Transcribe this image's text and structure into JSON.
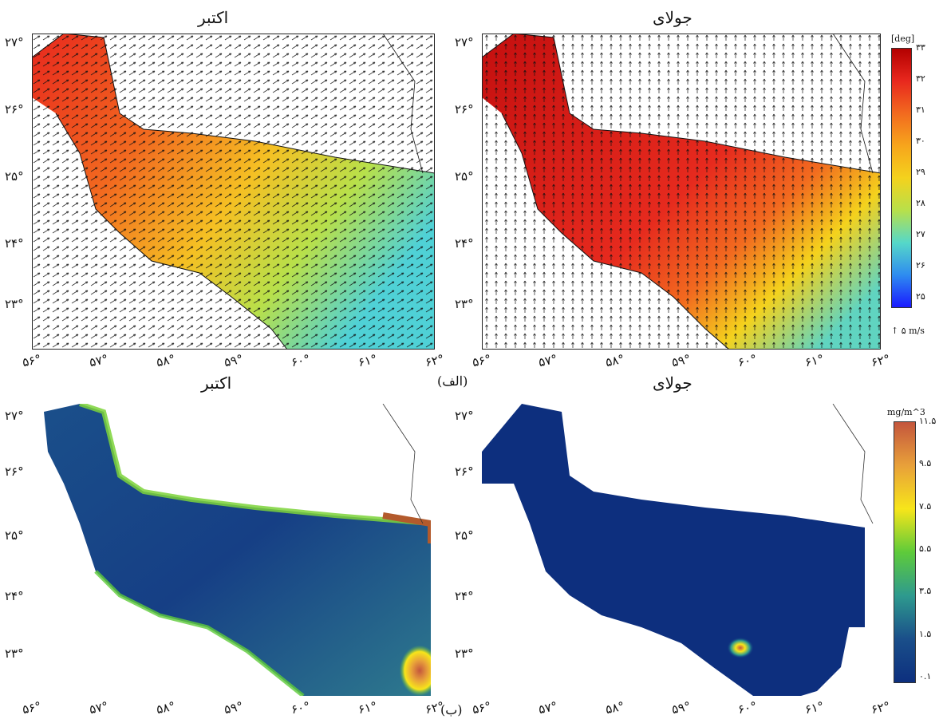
{
  "panel_group_labels": {
    "top": "(الف)",
    "bottom": "(ب)"
  },
  "panels": {
    "top_left": {
      "title": "اکتبر",
      "variable": "sst_with_wind_vectors"
    },
    "top_right": {
      "title": "جولای",
      "variable": "sst_with_wind_vectors"
    },
    "bottom_left": {
      "title": "اکتبر",
      "variable": "chlorophyll"
    },
    "bottom_right": {
      "title": "جولای",
      "variable": "chlorophyll"
    }
  },
  "lon_ticks": [
    "۵۶°",
    "۵۷°",
    "۵۸°",
    "۵۹°",
    "۶۰°",
    "۶۱°",
    "۶۲°"
  ],
  "lat_ticks": [
    "۲۷°",
    "۲۶°",
    "۲۵°",
    "۲۴°",
    "۲۳°"
  ],
  "sst_colorbar": {
    "unit": "[deg]",
    "ticks": [
      "۳۳",
      "۳۲",
      "۳۱",
      "۳۰",
      "۲۹",
      "۲۸",
      "۲۷",
      "۲۶",
      "۲۵"
    ],
    "colors": [
      "#b30000",
      "#e8281e",
      "#f26a1f",
      "#f7a51c",
      "#f4d21d",
      "#b8e04a",
      "#56d8c8",
      "#2e8cf0",
      "#1a1aff"
    ]
  },
  "chl_colorbar": {
    "unit": "mg/m^3",
    "ticks": [
      "۱۱.۵",
      "۹.۵",
      "۷.۵",
      "۵.۵",
      "۳.۵",
      "۱.۵",
      "۰.۱"
    ],
    "colors": [
      "#c4563d",
      "#e8a03a",
      "#f7e51a",
      "#5ecb3a",
      "#2e9a8e",
      "#1a4f8a",
      "#0d2f7e"
    ]
  },
  "vector_legend": "۵ m/s"
}
